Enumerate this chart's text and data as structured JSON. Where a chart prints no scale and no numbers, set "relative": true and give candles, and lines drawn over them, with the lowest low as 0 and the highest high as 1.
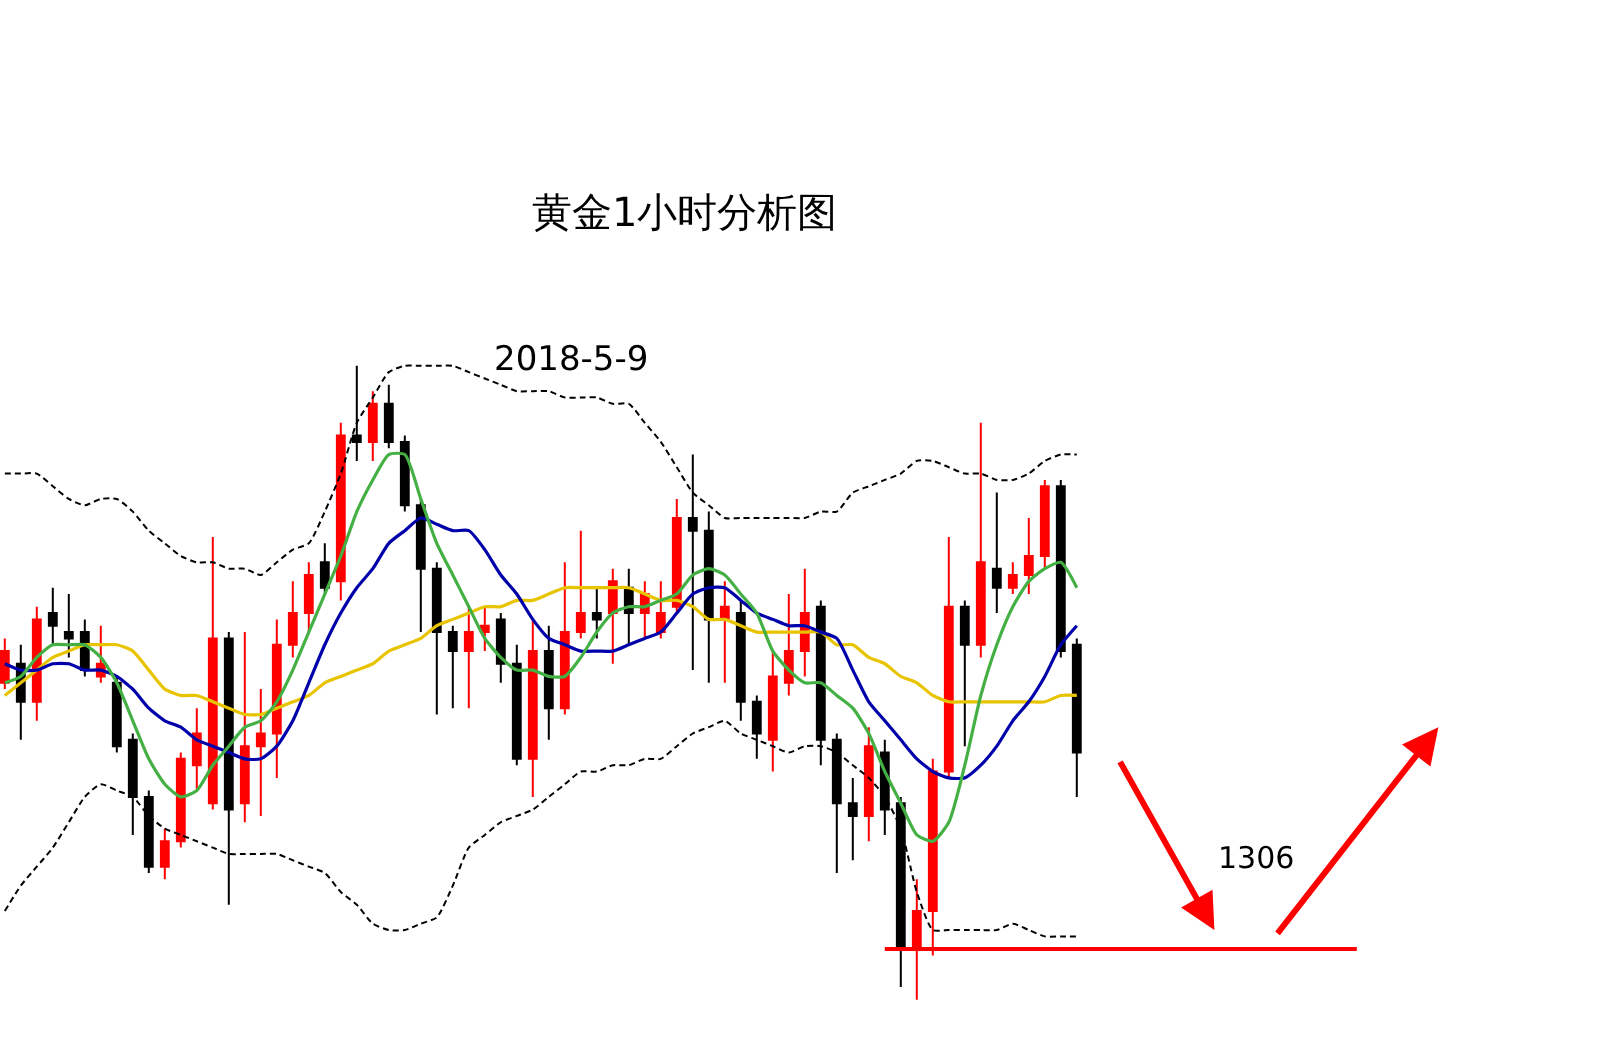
{
  "chart_data": {
    "type": "candlestick",
    "title": "黄金1小时分析图",
    "subtitle": "2018-5-9",
    "relative": true,
    "categories": [
      null,
      null,
      null,
      null,
      null,
      null,
      null,
      null,
      null,
      null,
      null,
      null,
      null,
      null,
      null,
      null,
      null,
      null,
      null,
      null,
      null,
      null,
      null,
      null,
      null,
      null,
      null,
      null,
      null,
      null,
      null,
      null,
      null,
      null,
      null,
      null,
      null,
      null,
      null,
      null,
      null,
      null,
      null,
      null,
      null,
      null,
      null,
      null,
      null,
      null,
      null,
      null,
      null,
      null,
      null,
      null,
      null,
      null,
      null,
      null,
      null,
      null,
      null,
      null,
      null,
      null,
      null,
      null
    ],
    "ohlc": [
      [
        0.5,
        0.57,
        0.49,
        0.55
      ],
      [
        0.53,
        0.56,
        0.41,
        0.47
      ],
      [
        0.47,
        0.62,
        0.44,
        0.6
      ],
      [
        0.61,
        0.65,
        0.56,
        0.59
      ],
      [
        0.58,
        0.64,
        0.54,
        0.57
      ],
      [
        0.58,
        0.6,
        0.51,
        0.52
      ],
      [
        0.51,
        0.59,
        0.5,
        0.53
      ],
      [
        0.5,
        0.51,
        0.39,
        0.4
      ],
      [
        0.41,
        0.42,
        0.26,
        0.32
      ],
      [
        0.32,
        0.33,
        0.2,
        0.21
      ],
      [
        0.21,
        0.27,
        0.19,
        0.25
      ],
      [
        0.25,
        0.39,
        0.24,
        0.38
      ],
      [
        0.37,
        0.46,
        0.33,
        0.42
      ],
      [
        0.31,
        0.73,
        0.3,
        0.57
      ],
      [
        0.57,
        0.58,
        0.15,
        0.3
      ],
      [
        0.31,
        0.58,
        0.28,
        0.4
      ],
      [
        0.4,
        0.49,
        0.29,
        0.42
      ],
      [
        0.42,
        0.6,
        0.35,
        0.56
      ],
      [
        0.56,
        0.66,
        0.54,
        0.61
      ],
      [
        0.61,
        0.69,
        0.58,
        0.67
      ],
      [
        0.69,
        0.72,
        0.64,
        0.65
      ],
      [
        0.66,
        0.91,
        0.63,
        0.89
      ],
      [
        0.89,
        1,
        0.85,
        0.88
      ],
      [
        0.88,
        0.96,
        0.85,
        0.94
      ],
      [
        0.94,
        0.97,
        0.87,
        0.88
      ],
      [
        0.88,
        0.89,
        0.77,
        0.78
      ],
      [
        0.78,
        0.79,
        0.58,
        0.68
      ],
      [
        0.68,
        0.69,
        0.45,
        0.58
      ],
      [
        0.58,
        0.59,
        0.46,
        0.55
      ],
      [
        0.55,
        0.62,
        0.46,
        0.58
      ],
      [
        0.58,
        0.62,
        0.55,
        0.59
      ],
      [
        0.6,
        0.61,
        0.5,
        0.53
      ],
      [
        0.53,
        0.56,
        0.37,
        0.38
      ],
      [
        0.38,
        0.6,
        0.32,
        0.55
      ],
      [
        0.55,
        0.59,
        0.41,
        0.46
      ],
      [
        0.46,
        0.69,
        0.45,
        0.58
      ],
      [
        0.58,
        0.74,
        0.57,
        0.61
      ],
      [
        0.61,
        0.65,
        0.57,
        0.6
      ],
      [
        0.61,
        0.68,
        0.53,
        0.66
      ],
      [
        0.65,
        0.68,
        0.56,
        0.61
      ],
      [
        0.61,
        0.66,
        0.57,
        0.64
      ],
      [
        0.58,
        0.66,
        0.57,
        0.61
      ],
      [
        0.62,
        0.79,
        0.61,
        0.76
      ],
      [
        0.76,
        0.86,
        0.52,
        0.74
      ],
      [
        0.74,
        0.77,
        0.5,
        0.6
      ],
      [
        0.6,
        0.66,
        0.5,
        0.62
      ],
      [
        0.61,
        0.63,
        0.44,
        0.47
      ],
      [
        0.47,
        0.48,
        0.38,
        0.42
      ],
      [
        0.41,
        0.55,
        0.36,
        0.51
      ],
      [
        0.5,
        0.64,
        0.48,
        0.55
      ],
      [
        0.55,
        0.68,
        0.51,
        0.61
      ],
      [
        0.62,
        0.63,
        0.37,
        0.41
      ],
      [
        0.41,
        0.42,
        0.2,
        0.31
      ],
      [
        0.31,
        0.35,
        0.22,
        0.29
      ],
      [
        0.29,
        0.43,
        0.25,
        0.4
      ],
      [
        0.39,
        0.41,
        0.26,
        0.3
      ],
      [
        0.31,
        0.32,
        0.02,
        0.08
      ],
      [
        0.08,
        0.19,
        0,
        0.14
      ],
      [
        0.14,
        0.38,
        0.07,
        0.36
      ],
      [
        0.36,
        0.73,
        0.35,
        0.62
      ],
      [
        0.62,
        0.63,
        0.4,
        0.56
      ],
      [
        0.56,
        0.91,
        0.54,
        0.69
      ],
      [
        0.68,
        0.8,
        0.61,
        0.65
      ],
      [
        0.65,
        0.69,
        0.64,
        0.67
      ],
      [
        0.67,
        0.76,
        0.64,
        0.7
      ],
      [
        0.7,
        0.82,
        0.68,
        0.81
      ],
      [
        0.81,
        0.82,
        0.54,
        0.55
      ],
      [
        0.56,
        0.57,
        0.32,
        0.39
      ]
    ],
    "colors": [
      "#ff0000",
      "#000000",
      "#ff0000",
      "#000000",
      "#000000",
      "#000000",
      "#ff0000",
      "#000000",
      "#000000",
      "#000000",
      "#ff0000",
      "#ff0000",
      "#ff0000",
      "#ff0000",
      "#000000",
      "#ff0000",
      "#ff0000",
      "#ff0000",
      "#ff0000",
      "#ff0000",
      "#000000",
      "#ff0000",
      "#000000",
      "#ff0000",
      "#000000",
      "#000000",
      "#000000",
      "#000000",
      "#000000",
      "#ff0000",
      "#ff0000",
      "#000000",
      "#000000",
      "#ff0000",
      "#000000",
      "#ff0000",
      "#ff0000",
      "#000000",
      "#ff0000",
      "#000000",
      "#ff0000",
      "#ff0000",
      "#ff0000",
      "#000000",
      "#000000",
      "#ff0000",
      "#000000",
      "#000000",
      "#ff0000",
      "#ff0000",
      "#ff0000",
      "#000000",
      "#000000",
      "#000000",
      "#ff0000",
      "#000000",
      "#000000",
      "#ff0000",
      "#ff0000",
      "#ff0000",
      "#000000",
      "#ff0000",
      "#000000",
      "#ff0000",
      "#ff0000",
      "#ff0000",
      "#000000",
      "#000000"
    ],
    "series": [
      {
        "type": "line",
        "color": "#000000",
        "line_style": "dashed",
        "values": [
          0.83,
          0.83,
          0.83,
          0.81,
          0.79,
          0.78,
          0.79,
          0.79,
          0.77,
          0.74,
          0.72,
          0.7,
          0.69,
          0.69,
          0.68,
          0.68,
          0.67,
          0.69,
          0.71,
          0.72,
          0.77,
          0.83,
          0.91,
          0.95,
          0.99,
          1,
          1,
          1,
          1,
          0.99,
          0.98,
          0.97,
          0.96,
          0.96,
          0.96,
          0.95,
          0.95,
          0.95,
          0.94,
          0.94,
          0.91,
          0.88,
          0.84,
          0.8,
          0.78,
          0.76,
          0.76,
          0.76,
          0.76,
          0.76,
          0.76,
          0.77,
          0.77,
          0.8,
          0.81,
          0.82,
          0.83,
          0.85,
          0.85,
          0.84,
          0.83,
          0.83,
          0.82,
          0.82,
          0.83,
          0.85,
          0.86,
          0.86
        ]
      },
      {
        "type": "line",
        "color": "#000000",
        "line_style": "dashed",
        "values": [
          0.14,
          0.18,
          0.21,
          0.24,
          0.28,
          0.32,
          0.34,
          0.33,
          0.32,
          0.29,
          0.27,
          0.26,
          0.25,
          0.24,
          0.23,
          0.23,
          0.23,
          0.23,
          0.22,
          0.21,
          0.2,
          0.17,
          0.15,
          0.12,
          0.11,
          0.11,
          0.12,
          0.13,
          0.18,
          0.24,
          0.26,
          0.28,
          0.29,
          0.3,
          0.32,
          0.34,
          0.36,
          0.36,
          0.37,
          0.37,
          0.38,
          0.38,
          0.4,
          0.42,
          0.43,
          0.44,
          0.42,
          0.41,
          0.4,
          0.39,
          0.4,
          0.4,
          0.39,
          0.37,
          0.35,
          0.32,
          0.27,
          0.17,
          0.11,
          0.11,
          0.11,
          0.11,
          0.11,
          0.12,
          0.11,
          0.1,
          0.1,
          0.1
        ]
      },
      {
        "type": "line",
        "color": "#e8c400",
        "values": [
          0.48,
          0.5,
          0.52,
          0.54,
          0.55,
          0.56,
          0.56,
          0.56,
          0.55,
          0.52,
          0.49,
          0.48,
          0.48,
          0.47,
          0.46,
          0.45,
          0.45,
          0.46,
          0.47,
          0.48,
          0.5,
          0.51,
          0.52,
          0.53,
          0.55,
          0.56,
          0.57,
          0.59,
          0.6,
          0.61,
          0.62,
          0.62,
          0.63,
          0.63,
          0.64,
          0.65,
          0.65,
          0.65,
          0.65,
          0.65,
          0.64,
          0.63,
          0.63,
          0.62,
          0.6,
          0.6,
          0.59,
          0.58,
          0.58,
          0.58,
          0.58,
          0.58,
          0.56,
          0.56,
          0.54,
          0.53,
          0.51,
          0.5,
          0.48,
          0.47,
          0.47,
          0.47,
          0.47,
          0.47,
          0.47,
          0.47,
          0.48,
          0.48
        ]
      },
      {
        "type": "line",
        "color": "#0000aa",
        "values": [
          0.53,
          0.52,
          0.52,
          0.53,
          0.53,
          0.52,
          0.52,
          0.51,
          0.49,
          0.46,
          0.44,
          0.43,
          0.41,
          0.4,
          0.39,
          0.38,
          0.38,
          0.4,
          0.44,
          0.5,
          0.56,
          0.61,
          0.65,
          0.68,
          0.72,
          0.74,
          0.76,
          0.75,
          0.74,
          0.74,
          0.71,
          0.67,
          0.64,
          0.6,
          0.57,
          0.56,
          0.55,
          0.55,
          0.55,
          0.56,
          0.57,
          0.58,
          0.61,
          0.64,
          0.65,
          0.65,
          0.63,
          0.61,
          0.6,
          0.59,
          0.59,
          0.58,
          0.57,
          0.52,
          0.47,
          0.44,
          0.41,
          0.38,
          0.36,
          0.35,
          0.35,
          0.37,
          0.4,
          0.44,
          0.47,
          0.51,
          0.56,
          0.59
        ]
      },
      {
        "type": "line",
        "color": "#44b044",
        "values": [
          0.5,
          0.51,
          0.54,
          0.56,
          0.56,
          0.56,
          0.54,
          0.5,
          0.44,
          0.38,
          0.34,
          0.32,
          0.33,
          0.37,
          0.4,
          0.43,
          0.44,
          0.47,
          0.52,
          0.58,
          0.64,
          0.7,
          0.77,
          0.82,
          0.86,
          0.86,
          0.79,
          0.72,
          0.67,
          0.62,
          0.57,
          0.54,
          0.52,
          0.52,
          0.51,
          0.51,
          0.54,
          0.58,
          0.61,
          0.62,
          0.62,
          0.63,
          0.64,
          0.67,
          0.68,
          0.67,
          0.64,
          0.61,
          0.55,
          0.52,
          0.5,
          0.5,
          0.48,
          0.46,
          0.42,
          0.36,
          0.31,
          0.26,
          0.25,
          0.28,
          0.37,
          0.48,
          0.56,
          0.62,
          0.66,
          0.68,
          0.69,
          0.65
        ]
      }
    ],
    "annotations": [
      "1306"
    ],
    "ref_lines": [
      {
        "axis": "y",
        "value": 0.08,
        "color": "#ff0000"
      }
    ]
  }
}
